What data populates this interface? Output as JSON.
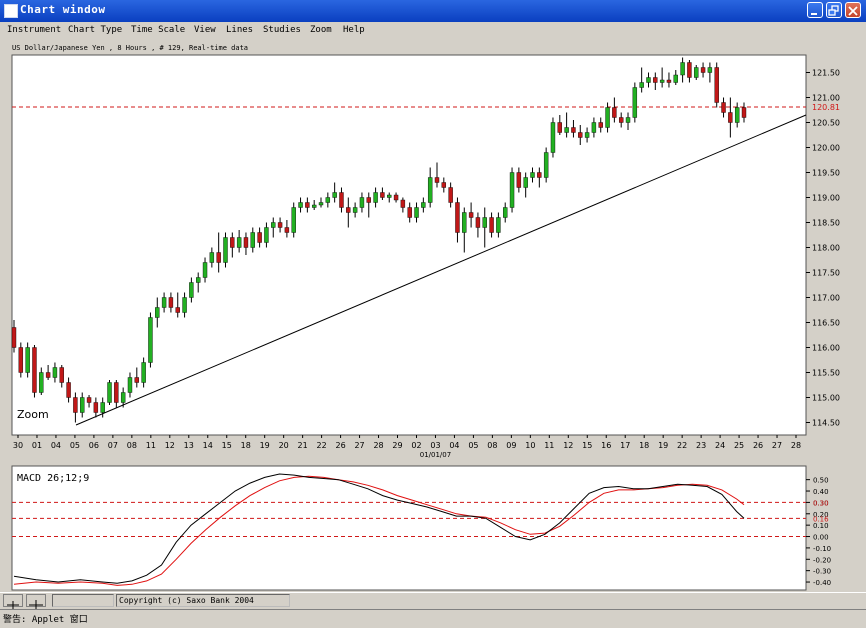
{
  "window": {
    "title": "Chart window"
  },
  "menu": [
    "Instrument",
    "Chart Type",
    "Time Scale",
    "View",
    "Lines",
    "Studies",
    "Zoom",
    "Help"
  ],
  "info_line": "US Dollar/Japanese Yen , 8 Hours , # 129, Real-time data",
  "zoom_label": "Zoom",
  "macd_label": "MACD 26;12;9",
  "copyright": "Copyright (c) Saxo Bank 2004",
  "status_text": "警告: Applet 窗口",
  "colors": {
    "up": "#22b022",
    "down": "#c01818",
    "ref_line": "#d01818",
    "signal": "#e01010",
    "macd": "#000000"
  },
  "chart_data": [
    {
      "type": "candlestick",
      "ylim": [
        114.25,
        121.85
      ],
      "y_ticks": [
        "121.50",
        "121.00",
        "120.50",
        "120.00",
        "119.50",
        "119.00",
        "118.50",
        "118.00",
        "117.50",
        "117.00",
        "116.50",
        "116.00",
        "115.50",
        "115.00",
        "114.50"
      ],
      "x_ticks": [
        "30",
        "01",
        "04",
        "05",
        "06",
        "07",
        "08",
        "11",
        "12",
        "13",
        "14",
        "15",
        "18",
        "19",
        "20",
        "21",
        "22",
        "26",
        "27",
        "28",
        "29",
        "02",
        "03",
        "04",
        "05",
        "08",
        "09",
        "10",
        "11",
        "12",
        "15",
        "16",
        "17",
        "18",
        "19",
        "22",
        "23",
        "24",
        "25",
        "26",
        "27",
        "28"
      ],
      "x_date_label": "01/01/07",
      "reference_line": {
        "value": 120.81,
        "label": "120.81"
      },
      "trendline": [
        [
          0,
          114.45
        ],
        [
          95,
          120.65
        ]
      ],
      "candles": [
        [
          116.4,
          116.55,
          115.9,
          116.0
        ],
        [
          116.0,
          116.1,
          115.4,
          115.5
        ],
        [
          115.5,
          116.1,
          115.4,
          116.0
        ],
        [
          116.0,
          116.05,
          115.0,
          115.1
        ],
        [
          115.1,
          115.6,
          115.05,
          115.5
        ],
        [
          115.5,
          115.65,
          115.35,
          115.4
        ],
        [
          115.4,
          115.7,
          115.3,
          115.6
        ],
        [
          115.6,
          115.65,
          115.2,
          115.3
        ],
        [
          115.3,
          115.4,
          114.9,
          115.0
        ],
        [
          115.0,
          115.1,
          114.5,
          114.7
        ],
        [
          114.7,
          115.1,
          114.6,
          115.0
        ],
        [
          115.0,
          115.05,
          114.8,
          114.9
        ],
        [
          114.9,
          115.0,
          114.6,
          114.7
        ],
        [
          114.7,
          115.0,
          114.6,
          114.9
        ],
        [
          114.9,
          115.35,
          114.85,
          115.3
        ],
        [
          115.3,
          115.35,
          114.8,
          114.9
        ],
        [
          114.9,
          115.2,
          114.8,
          115.1
        ],
        [
          115.1,
          115.5,
          115.0,
          115.4
        ],
        [
          115.4,
          115.6,
          115.2,
          115.3
        ],
        [
          115.3,
          115.8,
          115.2,
          115.7
        ],
        [
          115.7,
          116.7,
          115.6,
          116.6
        ],
        [
          116.6,
          117.0,
          116.4,
          116.8
        ],
        [
          116.8,
          117.1,
          116.7,
          117.0
        ],
        [
          117.0,
          117.1,
          116.7,
          116.8
        ],
        [
          116.8,
          117.1,
          116.6,
          116.7
        ],
        [
          116.7,
          117.1,
          116.6,
          117.0
        ],
        [
          117.0,
          117.4,
          116.9,
          117.3
        ],
        [
          117.3,
          117.5,
          117.1,
          117.4
        ],
        [
          117.4,
          117.8,
          117.3,
          117.7
        ],
        [
          117.7,
          118.0,
          117.6,
          117.9
        ],
        [
          117.9,
          118.3,
          117.5,
          117.7
        ],
        [
          117.7,
          118.3,
          117.6,
          118.2
        ],
        [
          118.2,
          118.3,
          117.8,
          118.0
        ],
        [
          118.0,
          118.35,
          117.9,
          118.2
        ],
        [
          118.2,
          118.3,
          117.85,
          118.0
        ],
        [
          118.0,
          118.4,
          117.9,
          118.3
        ],
        [
          118.3,
          118.4,
          118.0,
          118.1
        ],
        [
          118.1,
          118.5,
          118.0,
          118.4
        ],
        [
          118.4,
          118.6,
          118.2,
          118.5
        ],
        [
          118.5,
          118.6,
          118.3,
          118.4
        ],
        [
          118.4,
          118.55,
          118.2,
          118.3
        ],
        [
          118.3,
          118.9,
          118.2,
          118.8
        ],
        [
          118.8,
          119.0,
          118.7,
          118.9
        ],
        [
          118.9,
          119.0,
          118.7,
          118.8
        ],
        [
          118.8,
          118.95,
          118.75,
          118.85
        ],
        [
          118.85,
          119.0,
          118.8,
          118.9
        ],
        [
          118.9,
          119.1,
          118.8,
          119.0
        ],
        [
          119.0,
          119.3,
          118.9,
          119.1
        ],
        [
          119.1,
          119.2,
          118.7,
          118.8
        ],
        [
          118.8,
          119.0,
          118.4,
          118.7
        ],
        [
          118.7,
          118.9,
          118.6,
          118.8
        ],
        [
          118.8,
          119.1,
          118.7,
          119.0
        ],
        [
          119.0,
          119.1,
          118.6,
          118.9
        ],
        [
          118.9,
          119.2,
          118.8,
          119.1
        ],
        [
          119.1,
          119.2,
          118.95,
          119.0
        ],
        [
          119.0,
          119.1,
          118.9,
          119.05
        ],
        [
          119.05,
          119.1,
          118.9,
          118.95
        ],
        [
          118.95,
          119.0,
          118.7,
          118.8
        ],
        [
          118.8,
          118.9,
          118.5,
          118.6
        ],
        [
          118.6,
          118.9,
          118.5,
          118.8
        ],
        [
          118.8,
          119.0,
          118.7,
          118.9
        ],
        [
          118.9,
          119.6,
          118.8,
          119.4
        ],
        [
          119.4,
          119.7,
          119.2,
          119.3
        ],
        [
          119.3,
          119.4,
          119.1,
          119.2
        ],
        [
          119.2,
          119.3,
          118.8,
          118.9
        ],
        [
          118.9,
          119.0,
          118.1,
          118.3
        ],
        [
          118.3,
          118.8,
          117.9,
          118.7
        ],
        [
          118.7,
          118.9,
          118.4,
          118.6
        ],
        [
          118.6,
          118.7,
          118.2,
          118.4
        ],
        [
          118.4,
          118.8,
          118.0,
          118.6
        ],
        [
          118.6,
          118.7,
          118.2,
          118.3
        ],
        [
          118.3,
          118.7,
          118.2,
          118.6
        ],
        [
          118.6,
          118.9,
          118.5,
          118.8
        ],
        [
          118.8,
          119.6,
          118.7,
          119.5
        ],
        [
          119.5,
          119.6,
          119.1,
          119.2
        ],
        [
          119.2,
          119.5,
          119.0,
          119.4
        ],
        [
          119.4,
          119.6,
          119.3,
          119.5
        ],
        [
          119.5,
          119.6,
          119.2,
          119.4
        ],
        [
          119.4,
          120.0,
          119.3,
          119.9
        ],
        [
          119.9,
          120.6,
          119.8,
          120.5
        ],
        [
          120.5,
          120.65,
          120.25,
          120.3
        ],
        [
          120.3,
          120.7,
          120.2,
          120.4
        ],
        [
          120.4,
          120.55,
          120.2,
          120.3
        ],
        [
          120.3,
          120.45,
          120.05,
          120.2
        ],
        [
          120.2,
          120.4,
          120.1,
          120.3
        ],
        [
          120.3,
          120.6,
          120.2,
          120.5
        ],
        [
          120.5,
          120.6,
          120.3,
          120.4
        ],
        [
          120.4,
          120.9,
          120.3,
          120.8
        ],
        [
          120.8,
          121.0,
          120.5,
          120.6
        ],
        [
          120.6,
          120.7,
          120.4,
          120.5
        ],
        [
          120.5,
          120.7,
          120.35,
          120.6
        ],
        [
          120.6,
          121.3,
          120.5,
          121.2
        ],
        [
          121.2,
          121.6,
          121.1,
          121.3
        ],
        [
          121.3,
          121.5,
          121.2,
          121.4
        ],
        [
          121.4,
          121.5,
          121.15,
          121.3
        ],
        [
          121.3,
          121.6,
          121.2,
          121.35
        ],
        [
          121.35,
          121.5,
          121.2,
          121.3
        ],
        [
          121.3,
          121.55,
          121.25,
          121.45
        ],
        [
          121.45,
          121.8,
          121.3,
          121.7
        ],
        [
          121.7,
          121.75,
          121.3,
          121.4
        ],
        [
          121.4,
          121.65,
          121.35,
          121.6
        ],
        [
          121.6,
          121.7,
          121.4,
          121.5
        ],
        [
          121.5,
          121.7,
          121.3,
          121.6
        ],
        [
          121.6,
          121.7,
          120.8,
          120.9
        ],
        [
          120.9,
          121.0,
          120.6,
          120.7
        ],
        [
          120.7,
          121.0,
          120.2,
          120.5
        ],
        [
          120.5,
          120.9,
          120.4,
          120.8
        ],
        [
          120.8,
          120.9,
          120.5,
          120.6
        ]
      ]
    },
    {
      "type": "line",
      "title": "MACD 26;12;9",
      "ylim": [
        -0.47,
        0.62
      ],
      "y_ticks": [
        "0.50",
        "0.40",
        "0.30",
        "0.20",
        "0.10",
        "0.00",
        "-0.10",
        "-0.20",
        "-0.30",
        "-0.40"
      ],
      "reference_lines": [
        {
          "value": 0.3,
          "label": "0.30"
        },
        {
          "value": 0.16,
          "label": "0.16"
        },
        {
          "value": 0.0,
          "label": ""
        }
      ],
      "macd": [
        [
          0,
          -0.35
        ],
        [
          3,
          -0.38
        ],
        [
          6,
          -0.4
        ],
        [
          9,
          -0.38
        ],
        [
          12,
          -0.4
        ],
        [
          14,
          -0.41
        ],
        [
          16,
          -0.39
        ],
        [
          18,
          -0.34
        ],
        [
          20,
          -0.25
        ],
        [
          22,
          -0.05
        ],
        [
          24,
          0.1
        ],
        [
          26,
          0.2
        ],
        [
          28,
          0.3
        ],
        [
          30,
          0.4
        ],
        [
          32,
          0.47
        ],
        [
          34,
          0.52
        ],
        [
          36,
          0.55
        ],
        [
          38,
          0.54
        ],
        [
          40,
          0.52
        ],
        [
          42,
          0.51
        ],
        [
          44,
          0.5
        ],
        [
          46,
          0.46
        ],
        [
          48,
          0.42
        ],
        [
          50,
          0.36
        ],
        [
          52,
          0.32
        ],
        [
          54,
          0.29
        ],
        [
          56,
          0.26
        ],
        [
          58,
          0.22
        ],
        [
          60,
          0.18
        ],
        [
          62,
          0.18
        ],
        [
          64,
          0.16
        ],
        [
          66,
          0.08
        ],
        [
          68,
          0.0
        ],
        [
          70,
          -0.03
        ],
        [
          72,
          0.02
        ],
        [
          74,
          0.12
        ],
        [
          76,
          0.25
        ],
        [
          78,
          0.38
        ],
        [
          80,
          0.43
        ],
        [
          82,
          0.44
        ],
        [
          84,
          0.42
        ],
        [
          86,
          0.42
        ],
        [
          88,
          0.44
        ],
        [
          90,
          0.46
        ],
        [
          92,
          0.45
        ],
        [
          94,
          0.44
        ],
        [
          96,
          0.37
        ],
        [
          98,
          0.22
        ],
        [
          99,
          0.16
        ]
      ],
      "signal": [
        [
          0,
          -0.42
        ],
        [
          3,
          -0.4
        ],
        [
          6,
          -0.41
        ],
        [
          9,
          -0.4
        ],
        [
          12,
          -0.41
        ],
        [
          14,
          -0.43
        ],
        [
          16,
          -0.42
        ],
        [
          18,
          -0.39
        ],
        [
          20,
          -0.33
        ],
        [
          22,
          -0.2
        ],
        [
          24,
          -0.06
        ],
        [
          26,
          0.06
        ],
        [
          28,
          0.17
        ],
        [
          30,
          0.27
        ],
        [
          32,
          0.36
        ],
        [
          34,
          0.43
        ],
        [
          36,
          0.49
        ],
        [
          38,
          0.52
        ],
        [
          40,
          0.53
        ],
        [
          42,
          0.52
        ],
        [
          44,
          0.5
        ],
        [
          46,
          0.48
        ],
        [
          48,
          0.45
        ],
        [
          50,
          0.41
        ],
        [
          52,
          0.36
        ],
        [
          54,
          0.32
        ],
        [
          56,
          0.28
        ],
        [
          58,
          0.24
        ],
        [
          60,
          0.2
        ],
        [
          62,
          0.18
        ],
        [
          64,
          0.17
        ],
        [
          66,
          0.12
        ],
        [
          68,
          0.06
        ],
        [
          70,
          0.02
        ],
        [
          72,
          0.03
        ],
        [
          74,
          0.09
        ],
        [
          76,
          0.19
        ],
        [
          78,
          0.3
        ],
        [
          80,
          0.38
        ],
        [
          82,
          0.41
        ],
        [
          84,
          0.41
        ],
        [
          86,
          0.42
        ],
        [
          88,
          0.43
        ],
        [
          90,
          0.45
        ],
        [
          92,
          0.46
        ],
        [
          94,
          0.45
        ],
        [
          96,
          0.41
        ],
        [
          98,
          0.33
        ],
        [
          99,
          0.28
        ]
      ]
    }
  ]
}
